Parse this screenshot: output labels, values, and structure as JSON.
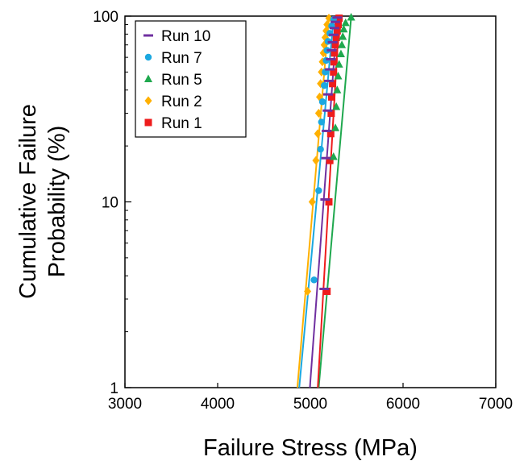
{
  "chart_data": {
    "type": "scatter",
    "xlabel": "Failure Stress (MPa)",
    "ylabel_lines": [
      "Cumulative Failure",
      "Probability (%)"
    ],
    "xlim": [
      3000,
      7000
    ],
    "ylim": [
      1,
      100
    ],
    "y_scale": "log",
    "x_ticks": [
      3000,
      4000,
      5000,
      6000,
      7000
    ],
    "x_tick_labels": [
      "3000",
      "4000",
      "5000",
      "6000",
      "7000"
    ],
    "y_ticks": [
      1,
      10,
      100
    ],
    "y_tick_labels": [
      "1",
      "10",
      "100"
    ],
    "grid": false,
    "legend_position": "top-left",
    "series": [
      {
        "name": "Run 10",
        "color": "#7030A0",
        "marker": "dash",
        "points": [
          [
            5150,
            3.4
          ],
          [
            5160,
            10.3
          ],
          [
            5170,
            17.2
          ],
          [
            5175,
            24.1
          ],
          [
            5185,
            31.0
          ],
          [
            5190,
            37.9
          ],
          [
            5200,
            44.8
          ],
          [
            5210,
            51.7
          ],
          [
            5220,
            58.6
          ],
          [
            5230,
            65.5
          ],
          [
            5240,
            72.4
          ],
          [
            5250,
            79.3
          ],
          [
            5260,
            86.2
          ],
          [
            5270,
            93.1
          ],
          [
            5290,
            98.3
          ]
        ],
        "fit": [
          [
            4995,
            1
          ],
          [
            5290,
            98.3
          ]
        ]
      },
      {
        "name": "Run 7",
        "color": "#1CA8E0",
        "marker": "circle",
        "points": [
          [
            5040,
            3.8
          ],
          [
            5090,
            11.5
          ],
          [
            5110,
            19.2
          ],
          [
            5120,
            26.9
          ],
          [
            5130,
            34.6
          ],
          [
            5150,
            42.3
          ],
          [
            5160,
            50.0
          ],
          [
            5170,
            57.7
          ],
          [
            5180,
            65.4
          ],
          [
            5190,
            73.1
          ],
          [
            5210,
            80.8
          ],
          [
            5230,
            88.5
          ],
          [
            5250,
            96.0
          ]
        ],
        "fit": [
          [
            4880,
            1
          ],
          [
            5250,
            96.0
          ]
        ]
      },
      {
        "name": "Run 5",
        "color": "#1FA84E",
        "marker": "triangle",
        "points": [
          [
            5250,
            17.5
          ],
          [
            5270,
            25.0
          ],
          [
            5280,
            32.5
          ],
          [
            5290,
            40.0
          ],
          [
            5300,
            47.5
          ],
          [
            5310,
            55.0
          ],
          [
            5330,
            62.5
          ],
          [
            5340,
            70.0
          ],
          [
            5350,
            77.5
          ],
          [
            5360,
            85.0
          ],
          [
            5380,
            92.0
          ],
          [
            5440,
            98.5
          ]
        ],
        "fit": [
          [
            5090,
            1
          ],
          [
            5440,
            98.5
          ]
        ]
      },
      {
        "name": "Run 2",
        "color": "#FFB000",
        "marker": "diamond",
        "points": [
          [
            4970,
            3.3
          ],
          [
            5020,
            10.0
          ],
          [
            5060,
            16.7
          ],
          [
            5080,
            23.3
          ],
          [
            5090,
            30.0
          ],
          [
            5100,
            36.7
          ],
          [
            5110,
            43.3
          ],
          [
            5120,
            50.0
          ],
          [
            5130,
            56.7
          ],
          [
            5140,
            63.3
          ],
          [
            5150,
            70.0
          ],
          [
            5160,
            76.7
          ],
          [
            5170,
            83.3
          ],
          [
            5180,
            90.0
          ],
          [
            5200,
            97.5
          ]
        ],
        "fit": [
          [
            4860,
            1
          ],
          [
            5200,
            97.5
          ]
        ]
      },
      {
        "name": "Run 1",
        "color": "#EE1C1C",
        "marker": "square",
        "points": [
          [
            5180,
            3.3
          ],
          [
            5200,
            10.0
          ],
          [
            5210,
            16.7
          ],
          [
            5220,
            23.3
          ],
          [
            5225,
            30.0
          ],
          [
            5230,
            36.7
          ],
          [
            5240,
            43.3
          ],
          [
            5250,
            50.0
          ],
          [
            5255,
            56.7
          ],
          [
            5260,
            63.3
          ],
          [
            5270,
            70.0
          ],
          [
            5280,
            76.7
          ],
          [
            5290,
            83.3
          ],
          [
            5300,
            90.0
          ],
          [
            5310,
            97.5
          ]
        ],
        "fit": [
          [
            5080,
            1
          ],
          [
            5310,
            97.5
          ]
        ]
      }
    ]
  }
}
